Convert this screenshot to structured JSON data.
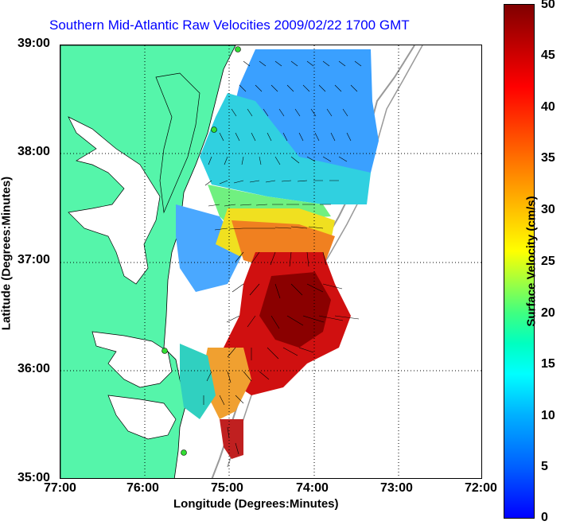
{
  "title": "Southern Mid-Atlantic Raw Velocities 2009/02/22 1700 GMT",
  "axes": {
    "xlabel": "Longitude (Degrees:Minutes)",
    "ylabel": "Latitude (Degrees:Minutes)",
    "x_ticks": [
      "77:00",
      "76:00",
      "75:00",
      "74:00",
      "73:00",
      "72:00"
    ],
    "y_ticks": [
      "39:00",
      "38:00",
      "37:00",
      "36:00",
      "35:00"
    ]
  },
  "colorbar": {
    "label": "Surface Velocity (cm/s)",
    "ticks": [
      "0",
      "5",
      "10",
      "15",
      "20",
      "25",
      "30",
      "35",
      "40",
      "45",
      "50"
    ],
    "range": [
      0,
      50
    ],
    "colormap": "jet"
  },
  "colors": {
    "land": "#55f5aa",
    "title": "#0000ff",
    "coastline": "#000000",
    "station": "#33dd33"
  }
}
